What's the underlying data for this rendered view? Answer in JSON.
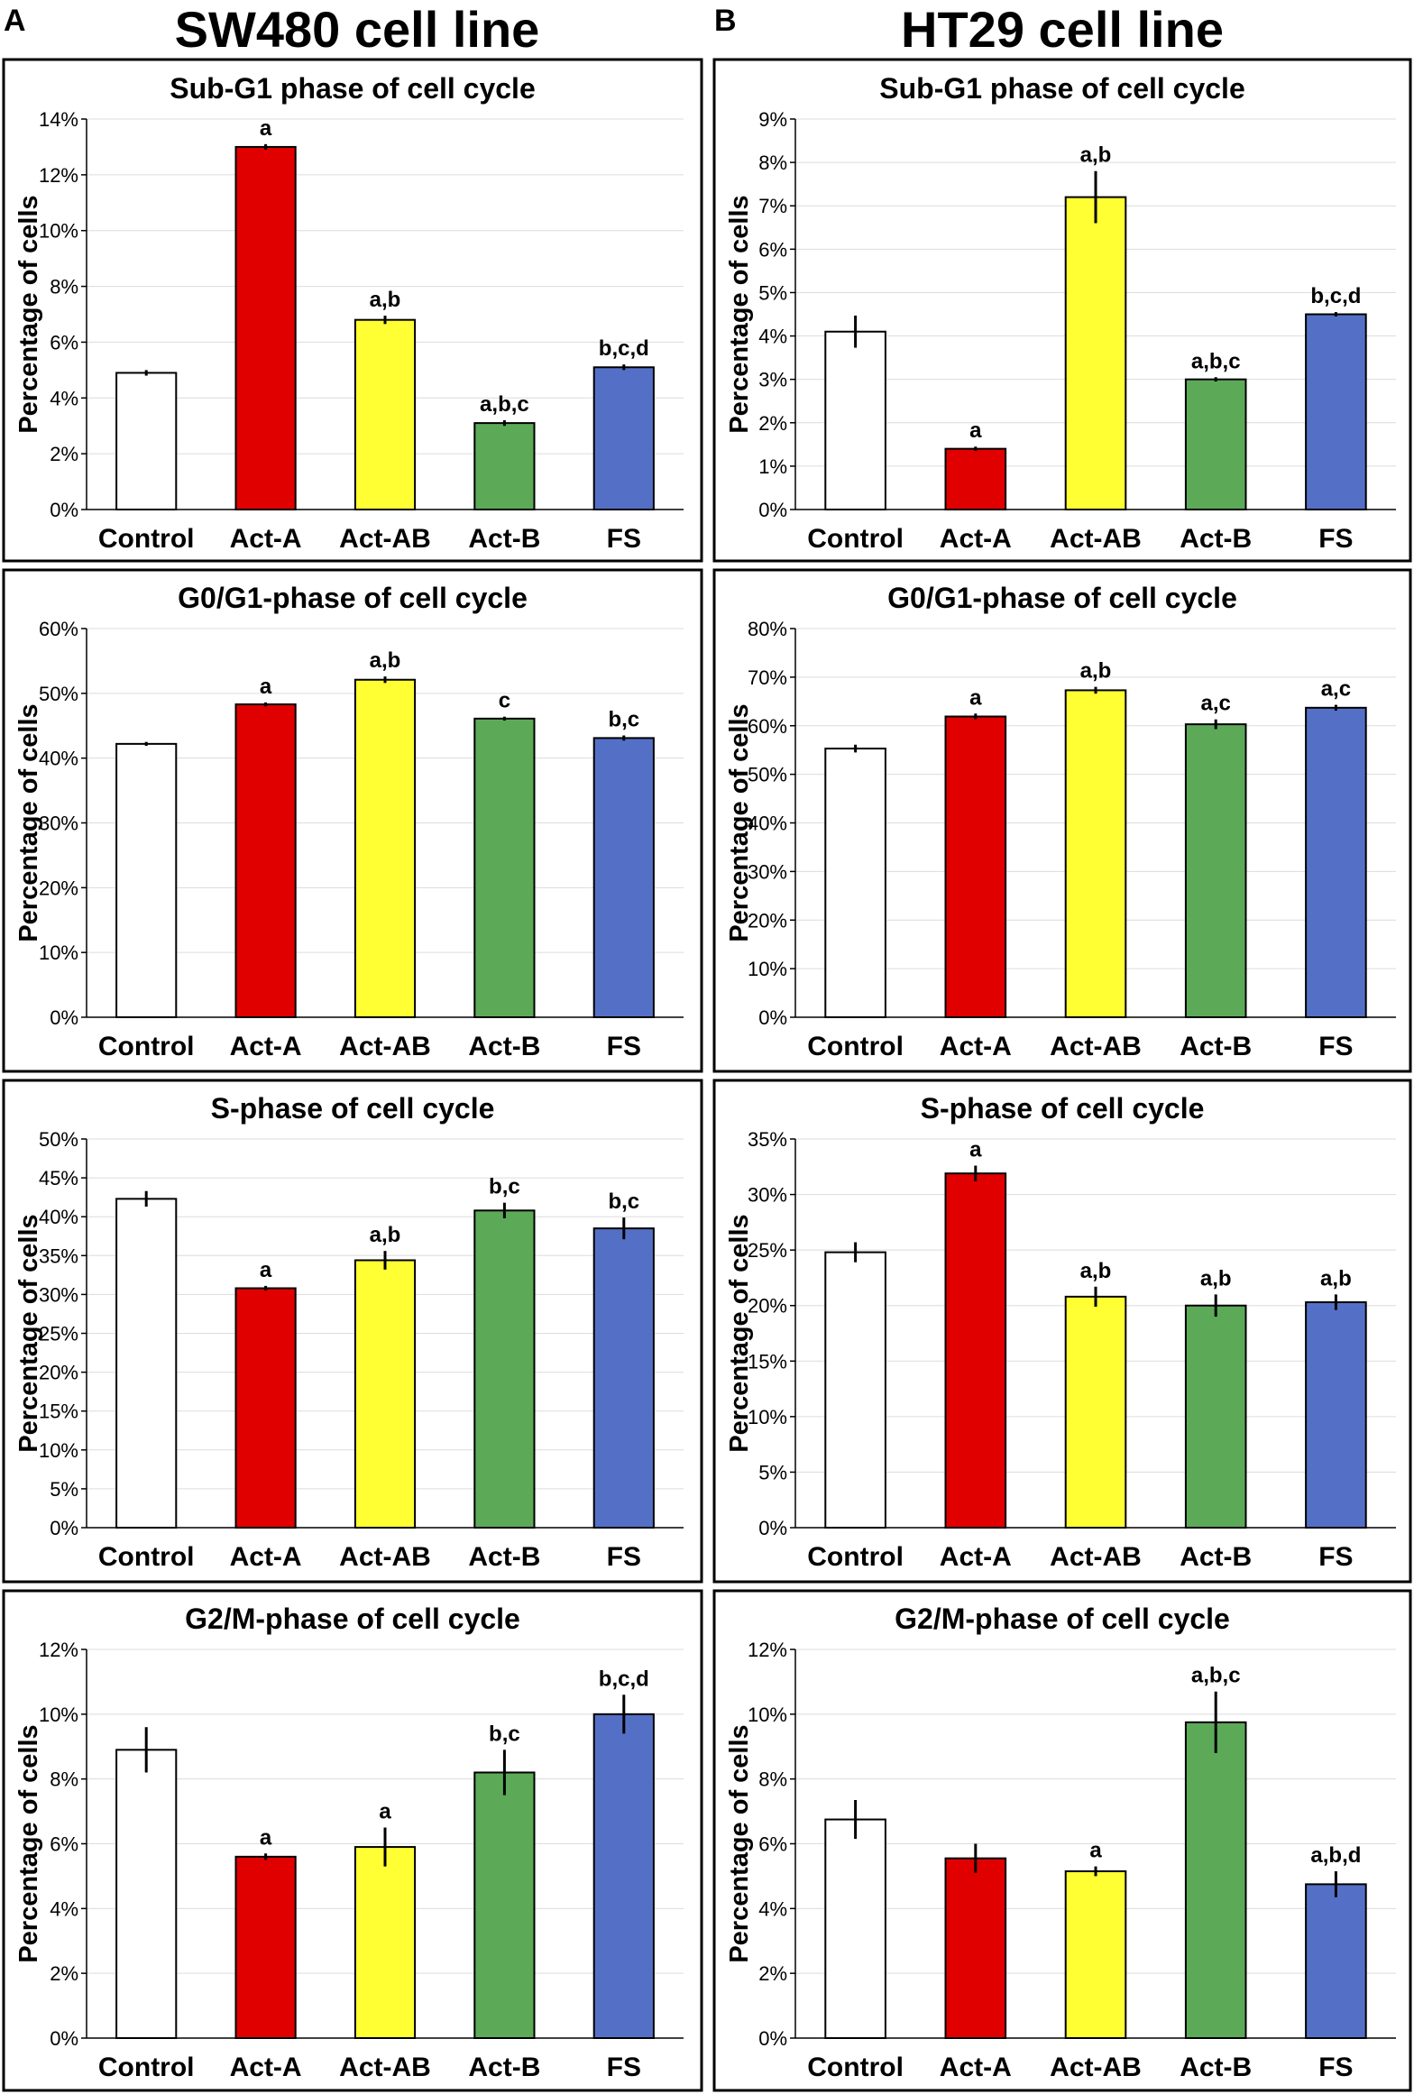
{
  "figure": {
    "panel_a_letter": "A",
    "panel_b_letter": "B",
    "column_a_title": "SW480 cell line",
    "column_b_title": "HT29 cell line"
  },
  "colors": {
    "Control": "#ffffff",
    "Act-A": "#e00000",
    "Act-AB": "#ffff33",
    "Act-B": "#5caa58",
    "FS": "#5470c6"
  },
  "chart_data": [
    {
      "type": "bar",
      "cell_line": "SW480 cell line",
      "title": "Sub-G1 phase of cell cycle",
      "ylabel": "Percentage of cells",
      "ylim": [
        0,
        14
      ],
      "ystep": 2,
      "yunit": "%",
      "categories": [
        "Control",
        "Act-A",
        "Act-AB",
        "Act-B",
        "FS"
      ],
      "values": [
        4.9,
        13.0,
        6.8,
        3.1,
        5.1
      ],
      "errors": [
        0.1,
        0.1,
        0.15,
        0.1,
        0.1
      ],
      "significance": [
        "",
        "a",
        "a,b",
        "a,b,c",
        "b,c,d"
      ]
    },
    {
      "type": "bar",
      "cell_line": "HT29 cell line",
      "title": "Sub-G1 phase of cell cycle",
      "ylabel": "Percentage of cells",
      "ylim": [
        0,
        9
      ],
      "ystep": 1,
      "yunit": "%",
      "categories": [
        "Control",
        "Act-A",
        "Act-AB",
        "Act-B",
        "FS"
      ],
      "values": [
        4.1,
        1.4,
        7.2,
        3.0,
        4.5
      ],
      "errors": [
        0.37,
        0.05,
        0.6,
        0.05,
        0.05
      ],
      "significance": [
        "",
        "a",
        "a,b",
        "a,b,c",
        "b,c,d"
      ]
    },
    {
      "type": "bar",
      "cell_line": "SW480 cell line",
      "title": "G0/G1-phase of cell cycle",
      "ylabel": "Percentage of cells",
      "ylim": [
        0,
        60
      ],
      "ystep": 10,
      "yunit": "%",
      "categories": [
        "Control",
        "Act-A",
        "Act-AB",
        "Act-B",
        "FS"
      ],
      "values": [
        42.2,
        48.3,
        52.1,
        46.1,
        43.1
      ],
      "errors": [
        0.3,
        0.3,
        0.5,
        0.3,
        0.4
      ],
      "significance": [
        "",
        "a",
        "a,b",
        "c",
        "b,c"
      ]
    },
    {
      "type": "bar",
      "cell_line": "HT29 cell line",
      "title": "G0/G1-phase of cell cycle",
      "ylabel": "Percentage of cells",
      "ylim": [
        0,
        80
      ],
      "ystep": 10,
      "yunit": "%",
      "categories": [
        "Control",
        "Act-A",
        "Act-AB",
        "Act-B",
        "FS"
      ],
      "values": [
        55.3,
        61.9,
        67.3,
        60.3,
        63.7
      ],
      "errors": [
        0.8,
        0.6,
        0.7,
        1.0,
        0.6
      ],
      "significance": [
        "",
        "a",
        "a,b",
        "a,c",
        "a,c"
      ]
    },
    {
      "type": "bar",
      "cell_line": "SW480 cell line",
      "title": "S-phase of cell cycle",
      "ylabel": "Percentage of cells",
      "ylim": [
        0,
        50
      ],
      "ystep": 5,
      "yunit": "%",
      "categories": [
        "Control",
        "Act-A",
        "Act-AB",
        "Act-B",
        "FS"
      ],
      "values": [
        42.3,
        30.8,
        34.4,
        40.8,
        38.5
      ],
      "errors": [
        1.0,
        0.3,
        1.2,
        1.0,
        1.4
      ],
      "significance": [
        "",
        "a",
        "a,b",
        "b,c",
        "b,c"
      ]
    },
    {
      "type": "bar",
      "cell_line": "HT29 cell line",
      "title": "S-phase of cell cycle",
      "ylabel": "Percentage of cells",
      "ylim": [
        0,
        35
      ],
      "ystep": 5,
      "yunit": "%",
      "categories": [
        "Control",
        "Act-A",
        "Act-AB",
        "Act-B",
        "FS"
      ],
      "values": [
        24.8,
        31.9,
        20.8,
        20.0,
        20.3
      ],
      "errors": [
        0.9,
        0.7,
        0.9,
        1.0,
        0.7
      ],
      "significance": [
        "",
        "a",
        "a,b",
        "a,b",
        "a,b"
      ]
    },
    {
      "type": "bar",
      "cell_line": "SW480 cell line",
      "title": "G2/M-phase of cell cycle",
      "ylabel": "Percentage of cells",
      "ylim": [
        0,
        12
      ],
      "ystep": 2,
      "yunit": "%",
      "categories": [
        "Control",
        "Act-A",
        "Act-AB",
        "Act-B",
        "FS"
      ],
      "values": [
        8.9,
        5.6,
        5.9,
        8.2,
        10.0
      ],
      "errors": [
        0.7,
        0.1,
        0.6,
        0.7,
        0.6
      ],
      "significance": [
        "",
        "a",
        "a",
        "b,c",
        "b,c,d"
      ]
    },
    {
      "type": "bar",
      "cell_line": "HT29 cell line",
      "title": "G2/M-phase of cell cycle",
      "ylabel": "Percentage of cells",
      "ylim": [
        0,
        12
      ],
      "ystep": 2,
      "yunit": "%",
      "categories": [
        "Control",
        "Act-A",
        "Act-AB",
        "Act-B",
        "FS"
      ],
      "values": [
        6.75,
        5.55,
        5.15,
        9.75,
        4.75
      ],
      "errors": [
        0.6,
        0.45,
        0.15,
        0.95,
        0.4
      ],
      "significance": [
        "",
        "",
        "a",
        "a,b,c",
        "a,b,d"
      ]
    }
  ]
}
